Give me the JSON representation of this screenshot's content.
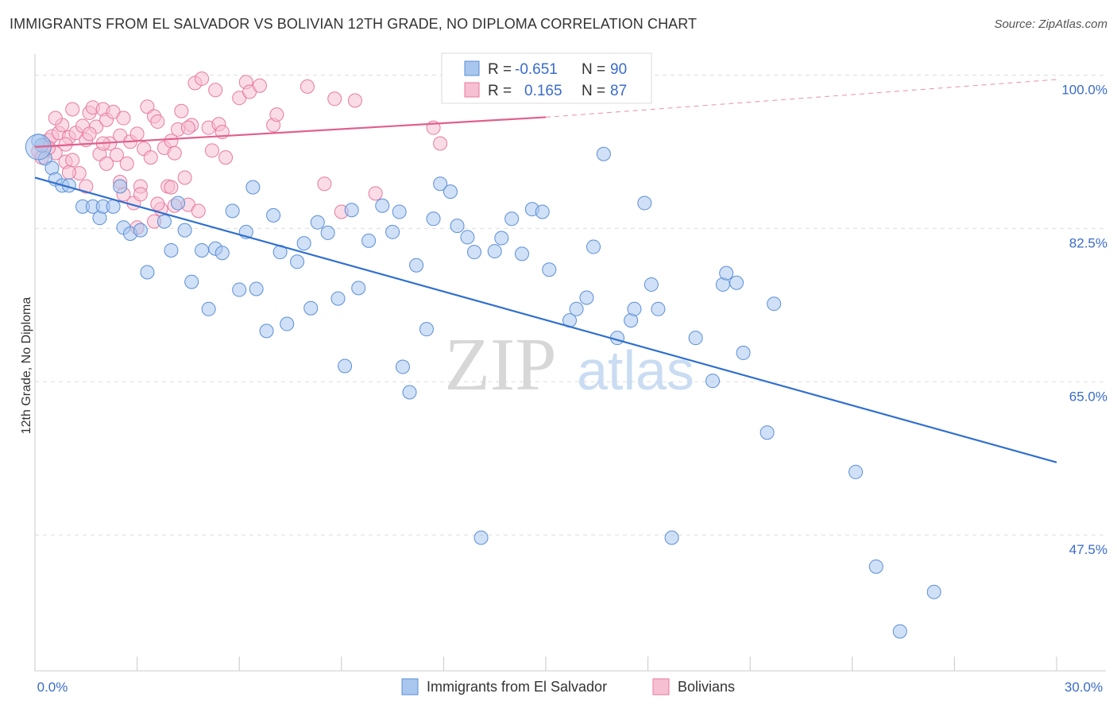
{
  "title": "IMMIGRANTS FROM EL SALVADOR VS BOLIVIAN 12TH GRADE, NO DIPLOMA CORRELATION CHART",
  "source": "Source: ZipAtlas.com",
  "watermark": {
    "zip": "ZIP",
    "atlas": "atlas"
  },
  "colors": {
    "blue": "#5b8fd6",
    "blue_fill": "#a9c6ef",
    "blue_line": "#2f6fcf",
    "pink": "#e87aa0",
    "pink_fill": "#f6bfd2",
    "pink_line": "#e0608e",
    "tick": "#3a6cc8",
    "grid": "#dddddd"
  },
  "legend": {
    "rows": [
      {
        "r_label": "R =",
        "r_value": "-0.651",
        "n_label": "N =",
        "n_value": "90",
        "series": "blue"
      },
      {
        "r_label": "R =",
        "r_value": "0.165",
        "n_label": "N =",
        "n_value": "87",
        "series": "pink"
      }
    ]
  },
  "chart_data": {
    "type": "scatter",
    "title": "IMMIGRANTS FROM EL SALVADOR VS BOLIVIAN 12TH GRADE, NO DIPLOMA CORRELATION CHART",
    "xlabel": "",
    "ylabel": "12th Grade, No Diploma",
    "xlim": [
      0,
      30
    ],
    "ylim": [
      32,
      101.5
    ],
    "x_tick_labels": [
      {
        "value": 0,
        "label": "0.0%"
      },
      {
        "value": 30,
        "label": "30.0%"
      }
    ],
    "y_tick_labels": [
      {
        "value": 100,
        "label": "100.0%"
      },
      {
        "value": 82.5,
        "label": "82.5%"
      },
      {
        "value": 65,
        "label": "65.0%"
      },
      {
        "value": 47.5,
        "label": "47.5%"
      }
    ],
    "series": [
      {
        "name": "Immigrants from El Salvador",
        "color": "blue",
        "r": -0.651,
        "n": 90,
        "trend": {
          "x": [
            0,
            30
          ],
          "y": [
            88.3,
            55.8
          ]
        },
        "points": [
          [
            0.1,
            92.5
          ],
          [
            0.3,
            90.5
          ],
          [
            0.5,
            89.4
          ],
          [
            0.6,
            88.1
          ],
          [
            0.8,
            87.4
          ],
          [
            1.0,
            87.4
          ],
          [
            1.4,
            85.0
          ],
          [
            1.7,
            85.0
          ],
          [
            1.9,
            83.7
          ],
          [
            2.0,
            85.0
          ],
          [
            2.3,
            85.0
          ],
          [
            2.5,
            87.3
          ],
          [
            2.6,
            82.6
          ],
          [
            2.8,
            81.9
          ],
          [
            3.1,
            82.3
          ],
          [
            3.3,
            77.5
          ],
          [
            3.8,
            83.3
          ],
          [
            4.0,
            80.0
          ],
          [
            4.2,
            85.4
          ],
          [
            4.4,
            82.3
          ],
          [
            4.6,
            76.4
          ],
          [
            4.9,
            80.0
          ],
          [
            5.1,
            73.3
          ],
          [
            5.3,
            80.2
          ],
          [
            5.5,
            79.7
          ],
          [
            5.8,
            84.5
          ],
          [
            6.0,
            75.5
          ],
          [
            6.2,
            82.1
          ],
          [
            6.4,
            87.2
          ],
          [
            6.5,
            75.6
          ],
          [
            6.8,
            70.8
          ],
          [
            7.0,
            84.0
          ],
          [
            7.2,
            79.8
          ],
          [
            7.4,
            71.6
          ],
          [
            7.7,
            78.7
          ],
          [
            7.9,
            80.8
          ],
          [
            8.1,
            73.4
          ],
          [
            8.3,
            83.2
          ],
          [
            8.6,
            82.0
          ],
          [
            8.9,
            74.5
          ],
          [
            9.1,
            66.8
          ],
          [
            9.3,
            84.6
          ],
          [
            9.5,
            75.7
          ],
          [
            9.8,
            81.1
          ],
          [
            10.2,
            85.1
          ],
          [
            10.5,
            82.1
          ],
          [
            10.7,
            84.4
          ],
          [
            10.8,
            66.7
          ],
          [
            11.0,
            63.8
          ],
          [
            11.2,
            78.3
          ],
          [
            11.5,
            71.0
          ],
          [
            11.7,
            83.6
          ],
          [
            11.9,
            87.6
          ],
          [
            12.2,
            86.7
          ],
          [
            12.4,
            82.8
          ],
          [
            12.7,
            81.5
          ],
          [
            12.9,
            79.8
          ],
          [
            13.1,
            47.2
          ],
          [
            13.5,
            79.9
          ],
          [
            13.7,
            81.4
          ],
          [
            14.0,
            83.6
          ],
          [
            14.3,
            79.6
          ],
          [
            14.6,
            84.7
          ],
          [
            14.9,
            84.4
          ],
          [
            15.1,
            77.8
          ],
          [
            15.7,
            72.0
          ],
          [
            15.9,
            73.3
          ],
          [
            16.2,
            74.6
          ],
          [
            16.4,
            80.4
          ],
          [
            16.7,
            91.0
          ],
          [
            17.1,
            70.0
          ],
          [
            17.5,
            72.0
          ],
          [
            17.6,
            73.3
          ],
          [
            17.9,
            85.4
          ],
          [
            18.1,
            76.1
          ],
          [
            18.3,
            73.3
          ],
          [
            18.7,
            47.2
          ],
          [
            19.4,
            70.0
          ],
          [
            19.9,
            65.1
          ],
          [
            20.2,
            76.1
          ],
          [
            20.3,
            77.4
          ],
          [
            20.6,
            76.3
          ],
          [
            20.8,
            68.3
          ],
          [
            21.5,
            59.2
          ],
          [
            21.7,
            73.9
          ],
          [
            24.1,
            54.7
          ],
          [
            24.7,
            43.9
          ],
          [
            25.4,
            36.5
          ],
          [
            26.4,
            41.0
          ],
          [
            0.2,
            92.0
          ]
        ]
      },
      {
        "name": "Bolivians",
        "color": "pink",
        "r": 0.165,
        "n": 87,
        "trend_solid": {
          "x": [
            0,
            15
          ],
          "y": [
            91.8,
            95.2
          ]
        },
        "trend_dashed": {
          "x": [
            15,
            30
          ],
          "y": [
            95.2,
            99.5
          ]
        },
        "points": [
          [
            0.1,
            91.3
          ],
          [
            0.2,
            90.6
          ],
          [
            0.3,
            92.0
          ],
          [
            0.4,
            92.6
          ],
          [
            0.5,
            93.0
          ],
          [
            0.6,
            91.1
          ],
          [
            0.7,
            93.4
          ],
          [
            0.8,
            94.3
          ],
          [
            0.9,
            90.1
          ],
          [
            1.0,
            92.9
          ],
          [
            1.1,
            90.3
          ],
          [
            1.2,
            93.4
          ],
          [
            1.3,
            88.8
          ],
          [
            1.4,
            94.2
          ],
          [
            1.5,
            92.6
          ],
          [
            1.6,
            95.7
          ],
          [
            1.7,
            96.3
          ],
          [
            1.8,
            94.1
          ],
          [
            1.9,
            91.0
          ],
          [
            2.0,
            96.1
          ],
          [
            2.1,
            94.9
          ],
          [
            2.2,
            92.2
          ],
          [
            2.3,
            95.8
          ],
          [
            2.4,
            90.9
          ],
          [
            2.5,
            93.1
          ],
          [
            2.6,
            86.4
          ],
          [
            2.7,
            89.9
          ],
          [
            2.8,
            92.4
          ],
          [
            2.9,
            85.4
          ],
          [
            3.0,
            93.3
          ],
          [
            3.1,
            87.3
          ],
          [
            3.2,
            91.6
          ],
          [
            3.3,
            96.4
          ],
          [
            3.4,
            90.6
          ],
          [
            3.5,
            95.3
          ],
          [
            3.6,
            94.7
          ],
          [
            3.7,
            84.7
          ],
          [
            3.8,
            91.7
          ],
          [
            3.9,
            87.3
          ],
          [
            4.0,
            92.5
          ],
          [
            4.1,
            85.1
          ],
          [
            4.2,
            93.8
          ],
          [
            4.3,
            95.9
          ],
          [
            4.4,
            88.3
          ],
          [
            4.5,
            85.2
          ],
          [
            4.6,
            94.3
          ],
          [
            4.7,
            99.1
          ],
          [
            4.8,
            84.5
          ],
          [
            4.9,
            99.6
          ],
          [
            5.1,
            94.0
          ],
          [
            5.2,
            91.4
          ],
          [
            5.3,
            98.3
          ],
          [
            5.4,
            94.4
          ],
          [
            5.5,
            93.5
          ],
          [
            5.6,
            90.6
          ],
          [
            6.0,
            97.4
          ],
          [
            6.2,
            99.2
          ],
          [
            6.3,
            98.1
          ],
          [
            6.6,
            98.8
          ],
          [
            7.0,
            94.3
          ],
          [
            7.1,
            95.5
          ],
          [
            8.0,
            98.7
          ],
          [
            8.5,
            87.6
          ],
          [
            8.8,
            97.3
          ],
          [
            9.0,
            84.4
          ],
          [
            9.4,
            97.1
          ],
          [
            10.0,
            86.5
          ],
          [
            11.7,
            94.0
          ],
          [
            11.9,
            92.2
          ],
          [
            1.0,
            88.9
          ],
          [
            1.5,
            87.3
          ],
          [
            2.0,
            92.2
          ],
          [
            2.5,
            87.8
          ],
          [
            3.0,
            82.6
          ],
          [
            3.5,
            83.3
          ],
          [
            4.0,
            87.2
          ],
          [
            4.5,
            94.0
          ],
          [
            0.6,
            95.1
          ],
          [
            1.1,
            96.1
          ],
          [
            1.6,
            93.3
          ],
          [
            2.1,
            89.9
          ],
          [
            2.6,
            95.1
          ],
          [
            3.1,
            86.4
          ],
          [
            3.6,
            85.3
          ],
          [
            4.1,
            91.1
          ],
          [
            0.4,
            91.7
          ],
          [
            0.9,
            92.1
          ]
        ]
      }
    ],
    "legend_position": "top-center",
    "bottom_legend": [
      "Immigrants from El Salvador",
      "Bolivians"
    ],
    "grid": true
  }
}
